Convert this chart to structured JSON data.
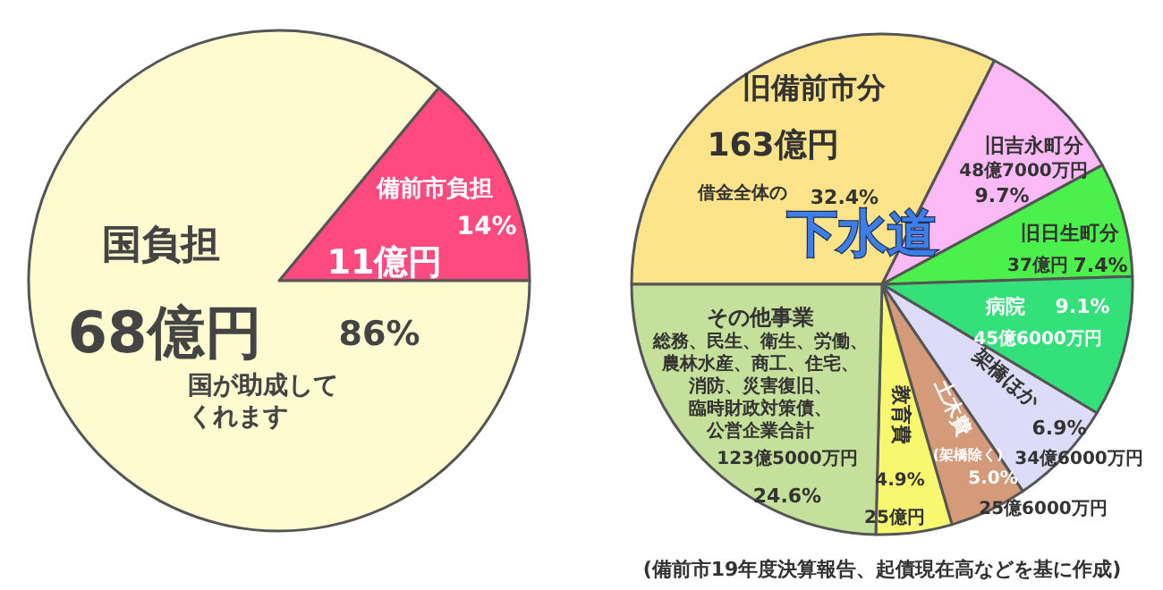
{
  "chart_data": [
    {
      "type": "pie",
      "categories": [
        "備前市負担",
        "国負担"
      ],
      "values": [
        14,
        86
      ],
      "colors": [
        "#ff4a80",
        "#fffbd0"
      ],
      "value_labels": [
        "14%",
        "86%"
      ],
      "annotations": [
        {
          "text": "11億円",
          "x": "備前市負担"
        },
        {
          "text": "68億円",
          "x": "国負担"
        },
        "国が助成してくれます"
      ]
    },
    {
      "type": "pie",
      "categories": [
        "旧備前市分",
        "旧吉永町分",
        "旧日生町分",
        "病院",
        "架橋ほか",
        "土木費",
        "教育費",
        "その他事業"
      ],
      "values": [
        32.4,
        9.7,
        7.4,
        9.1,
        6.9,
        5.0,
        4.9,
        24.6
      ],
      "colors": [
        "#fde38a",
        "#fbbaf6",
        "#4cf04c",
        "#33e07a",
        "#dcdcf8",
        "#d49a7a",
        "#f8f870",
        "#c4e09a"
      ],
      "value_labels": [
        "32.4%",
        "9.7%",
        "7.4%",
        "9.1%",
        "6.9%",
        "5.0%",
        "4.9%",
        "24.6%"
      ],
      "annotations": [
        {
          "text": "163億円",
          "x": "旧備前市分"
        },
        {
          "text": "48億7000万円",
          "x": "旧吉永町分"
        },
        {
          "text": "37億円",
          "x": "旧日生町分"
        },
        {
          "text": "45億6000万円",
          "x": "病院"
        },
        {
          "text": "34億6000万円",
          "x": "架橋ほか"
        },
        {
          "text": "25億6000万円",
          "x": "土木費"
        },
        {
          "text": "25億円",
          "x": "教育費"
        },
        {
          "text": "123億5000万円",
          "x": "その他事業"
        },
        "借金全体の",
        "(架橋除く)",
        "下水道",
        "総務、民生、衛生、労働、農林水産、商工、住宅、消防、災害復旧、臨時財政対策債、公営企業合計",
        "(備前市19年度決算報告、起債現在高などを基に作成)"
      ]
    }
  ]
}
